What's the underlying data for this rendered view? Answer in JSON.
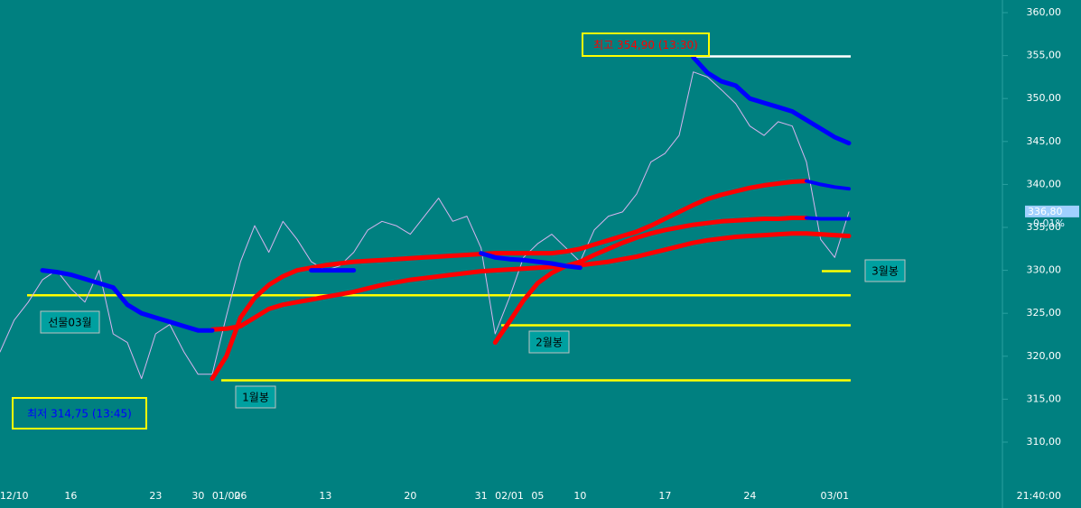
{
  "chart_data": {
    "type": "line",
    "categories": [
      null,
      "12/10",
      null,
      null,
      null,
      "16",
      null,
      null,
      null,
      null,
      null,
      "23",
      null,
      null,
      "30",
      null,
      "01/02",
      "06",
      null,
      null,
      null,
      null,
      null,
      "13",
      null,
      null,
      null,
      null,
      null,
      "20",
      null,
      null,
      null,
      null,
      "31",
      null,
      "02/01",
      null,
      "05",
      null,
      null,
      "10",
      null,
      null,
      null,
      null,
      null,
      "17",
      null,
      null,
      null,
      null,
      null,
      "24",
      null,
      null,
      null,
      null,
      null,
      "03/01",
      null
    ],
    "series": [
      {
        "color": "#d8b4f0",
        "values": [
          320.5,
          324.2,
          326.3,
          328.9,
          330,
          327.9,
          326.3,
          330,
          322.6,
          321.6,
          317.4,
          322.6,
          323.7,
          320.5,
          317.9,
          317.9,
          324.7,
          331,
          335.2,
          332.1,
          335.7,
          333.6,
          331,
          330,
          330.5,
          332.1,
          334.7,
          335.7,
          335.2,
          334.2,
          336.3,
          338.4,
          335.7,
          336.3,
          332.6,
          322.6,
          326.8,
          331.5,
          333.1,
          334.2,
          332.6,
          331,
          334.7,
          336.3,
          336.8,
          338.9,
          342.6,
          343.6,
          345.7,
          353.1,
          352.5,
          351,
          349.4,
          346.8,
          345.7,
          347.3,
          346.8,
          342.6,
          333.6,
          331.5,
          336.8
        ]
      },
      {
        "color": "#ff0000",
        "values": [
          null,
          null,
          null,
          null,
          null,
          null,
          null,
          null,
          null,
          null,
          null,
          null,
          null,
          null,
          null,
          323.1,
          323.2,
          323.5,
          324.5,
          325.5,
          326,
          326.3,
          326.6,
          326.9,
          327.2,
          327.5,
          327.9,
          328.3,
          328.6,
          328.9,
          329.1,
          329.3,
          329.5,
          329.7,
          329.9,
          330,
          330.1,
          330.2,
          330.3,
          330.4,
          330.5,
          330.6,
          330.8,
          331,
          331.3,
          331.6,
          332,
          332.4,
          332.8,
          333.2,
          333.5,
          333.7,
          333.9,
          334,
          334.1,
          334.2,
          334.3,
          334.3,
          334.2,
          334.1,
          334
        ]
      },
      {
        "color": "#ff0000",
        "values": [
          null,
          null,
          null,
          null,
          null,
          null,
          null,
          null,
          null,
          null,
          null,
          null,
          null,
          null,
          null,
          317.4,
          320,
          324.5,
          326.8,
          328.3,
          329.3,
          330,
          330.3,
          330.6,
          330.8,
          331,
          331.1,
          331.2,
          331.3,
          331.4,
          331.5,
          331.6,
          331.7,
          331.8,
          331.9,
          332,
          332,
          332,
          332,
          332,
          332.2,
          332.5,
          333,
          333.5,
          334,
          334.5,
          335.2,
          336,
          336.8,
          337.6,
          338.3,
          338.8,
          339.2,
          339.6,
          339.9,
          340.1,
          340.3,
          340.4,
          null,
          null,
          null
        ]
      },
      {
        "color": "#ff0000",
        "values": [
          null,
          null,
          null,
          null,
          null,
          null,
          null,
          null,
          null,
          null,
          null,
          null,
          null,
          null,
          null,
          null,
          null,
          null,
          null,
          null,
          null,
          null,
          null,
          null,
          null,
          null,
          null,
          null,
          null,
          null,
          null,
          null,
          null,
          null,
          null,
          321.6,
          324,
          326.5,
          328.5,
          329.7,
          330.5,
          331,
          331.8,
          332.5,
          333.2,
          333.8,
          334.3,
          334.7,
          335,
          335.3,
          335.5,
          335.7,
          335.8,
          335.9,
          336,
          336,
          336.1,
          336.1,
          null,
          null,
          null
        ]
      },
      {
        "color": "#0000ff",
        "values": [
          null,
          null,
          null,
          330,
          329.8,
          329.5,
          329,
          328.5,
          328,
          326,
          325,
          324.5,
          324,
          323.5,
          323,
          323,
          null,
          null,
          null,
          null,
          null,
          null,
          330,
          330,
          330,
          330,
          null,
          null,
          null,
          null,
          null,
          null,
          null,
          null,
          332,
          331.5,
          331.3,
          331.2,
          331,
          330.8,
          330.5,
          330.3,
          null,
          null,
          null,
          null,
          null,
          null,
          null,
          354.8,
          353,
          352,
          351.5,
          350,
          349.5,
          349,
          348.5,
          347.5,
          346.5,
          345.5,
          344.8
        ]
      },
      {
        "color": "#0000ff",
        "values": [
          null,
          null,
          null,
          null,
          null,
          null,
          null,
          null,
          null,
          null,
          null,
          null,
          null,
          null,
          null,
          null,
          null,
          null,
          null,
          null,
          null,
          null,
          null,
          null,
          null,
          null,
          null,
          null,
          null,
          null,
          null,
          null,
          null,
          null,
          null,
          null,
          null,
          null,
          null,
          null,
          null,
          null,
          null,
          null,
          null,
          null,
          null,
          null,
          null,
          null,
          null,
          null,
          null,
          null,
          null,
          null,
          null,
          340.4,
          340,
          339.7,
          339.5
        ]
      },
      {
        "color": "#0000ff",
        "values": [
          null,
          null,
          null,
          null,
          null,
          null,
          null,
          null,
          null,
          null,
          null,
          null,
          null,
          null,
          null,
          null,
          null,
          null,
          null,
          null,
          null,
          null,
          null,
          null,
          null,
          null,
          null,
          null,
          null,
          null,
          null,
          null,
          null,
          null,
          null,
          null,
          null,
          null,
          null,
          null,
          null,
          null,
          null,
          null,
          null,
          null,
          null,
          null,
          null,
          null,
          null,
          null,
          null,
          null,
          null,
          null,
          null,
          336.1,
          336,
          336,
          336
        ]
      }
    ],
    "levels": [
      {
        "value": 327.1,
        "color": "#ffff00"
      },
      {
        "value": 323.6,
        "color": "#ffff00"
      },
      {
        "value": 317.2,
        "color": "#ffff00"
      },
      {
        "value": 329.9,
        "color": "#ffff00"
      },
      {
        "value": 354.9,
        "color": "#ffffff"
      }
    ],
    "ylim": [
      310,
      360
    ],
    "yticks": [
      {
        "value": 310,
        "label": "310,00"
      },
      {
        "value": 315,
        "label": "315,00"
      },
      {
        "value": 320,
        "label": "320,00"
      },
      {
        "value": 325,
        "label": "325,00"
      },
      {
        "value": 330,
        "label": "330,00"
      },
      {
        "value": 335,
        "label": "335,00"
      },
      {
        "value": 340,
        "label": "340,00"
      },
      {
        "value": 345,
        "label": "345,00"
      },
      {
        "value": 350,
        "label": "350,00"
      },
      {
        "value": 355,
        "label": "355,00"
      },
      {
        "value": 360,
        "label": "360,00"
      }
    ],
    "annotations": [
      "선물03월",
      "1월봉",
      "2월봉",
      "3월봉",
      "최저 314,75 (13:45)",
      "최고 354,90 (13:30)"
    ],
    "last_price": {
      "value": 336.8,
      "label": "336,80"
    },
    "change": "-0,01%",
    "time": "21:40:00"
  }
}
